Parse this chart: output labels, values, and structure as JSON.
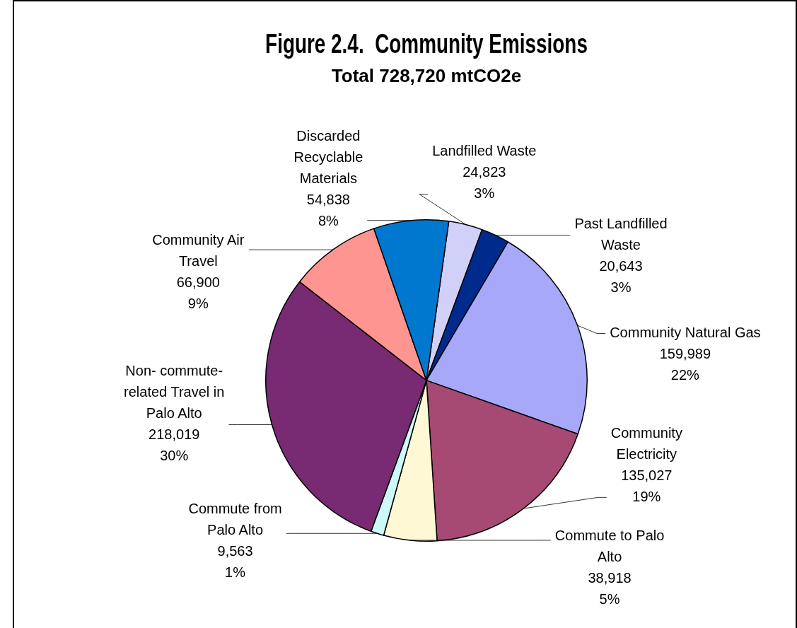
{
  "chart_data": {
    "type": "pie",
    "title": "Figure 2.4.  Community Emissions",
    "subtitle": "Total 728,720 mtCO2e",
    "categories": [
      "Landfilled Waste",
      "Past Landfilled Waste",
      "Community Natural Gas",
      "Community Electricity",
      "Commute to Palo Alto",
      "Commute from Palo Alto",
      "Non- commute-related Travel in Palo Alto",
      "Community Air Travel",
      "Discarded Recyclable Materials"
    ],
    "values": [
      24823,
      20643,
      159989,
      135027,
      38918,
      9563,
      218019,
      66900,
      54838
    ],
    "colors": [
      "#d0d0f8",
      "#002a8c",
      "#a8a8f8",
      "#a64a74",
      "#fff8d4",
      "#ccf8f8",
      "#782a72",
      "#ff9590",
      "#0078d0"
    ],
    "value_labels": [
      "24,823\n3%",
      "20,643\n3%",
      "159,989\n22%",
      "135,027\n19%",
      "38,918\n5%",
      "9,563\n1%",
      "218,019\n30%",
      "66,900\n9%",
      "54,838\n8%"
    ]
  }
}
